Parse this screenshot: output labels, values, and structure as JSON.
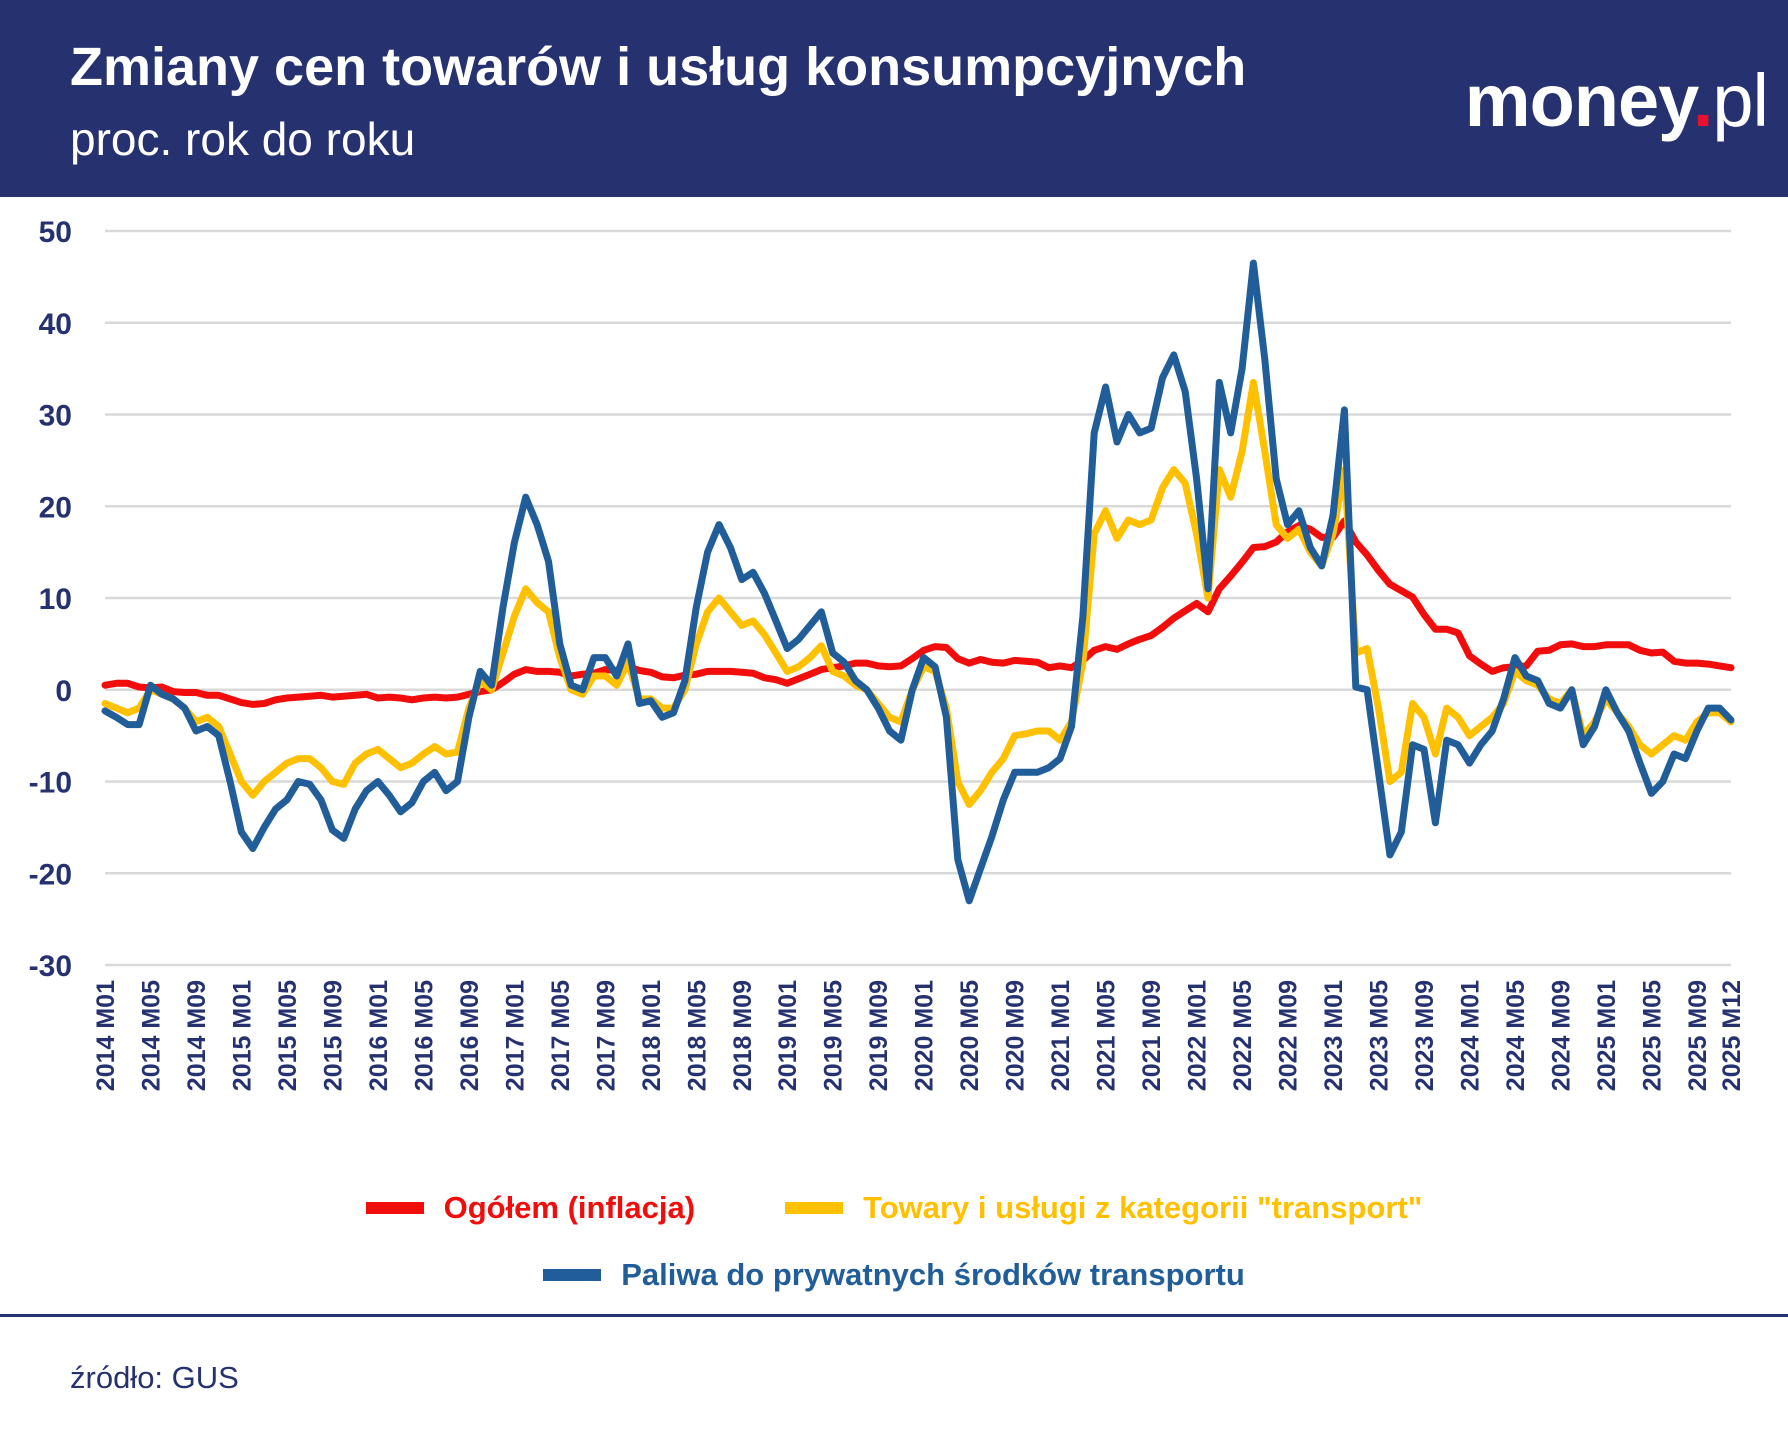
{
  "header": {
    "title": "Zmiany cen towarów i usług konsumpcyjnych",
    "subtitle": "proc. rok do roku",
    "logo": {
      "main": "money",
      "dot": ".",
      "suffix": "pl"
    }
  },
  "source": "źródło: GUS",
  "colors": {
    "header_bg": "#263270",
    "red": "#f20d0d",
    "yellow": "#ffc000",
    "blue": "#215e99",
    "axis_text": "#263270",
    "grid": "#d9d9d9"
  },
  "chart_data": {
    "type": "line",
    "ylim": [
      -30,
      50
    ],
    "yticks": [
      50,
      40,
      30,
      20,
      10,
      0,
      -10,
      -20,
      -30
    ],
    "grid": true,
    "legend_placement": "bottom",
    "x_start": "2014 M01",
    "x_end": "2025 M12",
    "xtick_labels": [
      "2014 M01",
      "2014 M05",
      "2014 M09",
      "2015 M01",
      "2015 M05",
      "2015 M09",
      "2016 M01",
      "2016 M05",
      "2016 M09",
      "2017 M01",
      "2017 M05",
      "2017 M09",
      "2018 M01",
      "2018 M05",
      "2018 M09",
      "2019 M01",
      "2019 M05",
      "2019 M09",
      "2020 M01",
      "2020 M05",
      "2020 M09",
      "2021 M01",
      "2021 M05",
      "2021 M09",
      "2022 M01",
      "2022 M05",
      "2022 M09",
      "2023 M01",
      "2023 M05",
      "2023 M09",
      "2024 M01",
      "2024 M05",
      "2024 M09",
      "2025 M01",
      "2025 M05",
      "2025 M09",
      "2025 M12"
    ],
    "series": [
      {
        "name": "Ogółem (inflacja)",
        "color": "#f20d0d",
        "values": [
          0.5,
          0.7,
          0.7,
          0.3,
          0.2,
          0.3,
          -0.2,
          -0.3,
          -0.3,
          -0.6,
          -0.6,
          -1.0,
          -1.4,
          -1.6,
          -1.5,
          -1.1,
          -0.9,
          -0.8,
          -0.7,
          -0.6,
          -0.8,
          -0.7,
          -0.6,
          -0.5,
          -0.9,
          -0.8,
          -0.9,
          -1.1,
          -0.9,
          -0.8,
          -0.9,
          -0.8,
          -0.5,
          -0.2,
          0.0,
          0.8,
          1.7,
          2.2,
          2.0,
          2.0,
          1.9,
          1.5,
          1.7,
          1.8,
          2.2,
          2.1,
          2.5,
          2.1,
          1.9,
          1.4,
          1.3,
          1.6,
          1.7,
          2.0,
          2.0,
          2.0,
          1.9,
          1.8,
          1.3,
          1.1,
          0.7,
          1.2,
          1.7,
          2.2,
          2.4,
          2.6,
          2.9,
          2.9,
          2.6,
          2.5,
          2.6,
          3.4,
          4.3,
          4.7,
          4.6,
          3.4,
          2.9,
          3.3,
          3.0,
          2.9,
          3.2,
          3.1,
          3.0,
          2.4,
          2.6,
          2.4,
          3.2,
          4.3,
          4.7,
          4.4,
          5.0,
          5.5,
          5.9,
          6.8,
          7.8,
          8.6,
          9.4,
          8.5,
          11.0,
          12.4,
          13.9,
          15.5,
          15.6,
          16.1,
          17.2,
          17.9,
          17.5,
          16.6,
          16.6,
          18.4,
          16.1,
          14.7,
          13.0,
          11.5,
          10.8,
          10.1,
          8.2,
          6.6,
          6.6,
          6.2,
          3.7,
          2.8,
          2.0,
          2.4,
          2.5,
          2.6,
          4.2,
          4.3,
          4.9,
          5.0,
          4.7,
          4.7,
          4.9,
          4.9,
          4.9,
          4.3,
          4.0,
          4.1,
          3.1,
          2.9,
          2.9,
          2.8,
          2.6,
          2.4
        ]
      },
      {
        "name": "Towary i usługi z kategorii \"transport\"",
        "color": "#ffc000",
        "values": [
          -1.5,
          -2,
          -2.5,
          -2,
          0,
          -0.5,
          -1,
          -2,
          -3.5,
          -3,
          -4,
          -7,
          -10,
          -11.5,
          -10,
          -9,
          -8,
          -7.5,
          -7.5,
          -8.5,
          -10,
          -10.3,
          -8,
          -7,
          -6.5,
          -7.5,
          -8.5,
          -8,
          -7,
          -6.2,
          -7,
          -6.8,
          -2,
          1,
          0,
          4,
          8,
          11,
          9.5,
          8.5,
          3.5,
          0,
          -0.5,
          1.5,
          1.5,
          0.5,
          3,
          -1,
          -1,
          -2,
          -2,
          0,
          5,
          8.5,
          10,
          8.5,
          7,
          7.5,
          6,
          4,
          2,
          2.5,
          3.5,
          4.8,
          2,
          1.5,
          0.5,
          0,
          -1.5,
          -3,
          -3.5,
          0,
          2.5,
          2,
          -2,
          -10,
          -12.5,
          -11,
          -9,
          -7.5,
          -5,
          -4.8,
          -4.5,
          -4.5,
          -5.5,
          -3.5,
          3,
          17,
          19.5,
          16.5,
          18.5,
          18,
          18.5,
          22,
          24,
          22.5,
          17,
          10,
          24,
          21,
          26,
          33.5,
          26,
          18,
          16.5,
          17.5,
          15,
          13.5,
          17,
          24,
          4,
          4.5,
          -2,
          -10,
          -9,
          -1.5,
          -3,
          -7,
          -2,
          -3,
          -5,
          -4,
          -3,
          -1.5,
          2,
          1,
          0.5,
          -1,
          -1.5,
          0,
          -5,
          -3.5,
          -1,
          -2.5,
          -4,
          -6,
          -7,
          -6,
          -5,
          -5.5,
          -3.5,
          -2.5,
          -2.5,
          -3.5
        ]
      },
      {
        "name": "Paliwa do prywatnych środków transportu",
        "color": "#215e99",
        "values": [
          -2.3,
          -3,
          -3.8,
          -3.8,
          0.5,
          -0.5,
          -1,
          -2,
          -4.5,
          -4,
          -5,
          -10,
          -15.5,
          -17.3,
          -15,
          -13,
          -12,
          -10,
          -10.3,
          -12,
          -15.3,
          -16.2,
          -13,
          -11,
          -10,
          -11.5,
          -13.3,
          -12.3,
          -10,
          -9,
          -11,
          -10,
          -3,
          2,
          0.5,
          9,
          16,
          21,
          18,
          14,
          5,
          0.5,
          0,
          3.5,
          3.5,
          1.5,
          5,
          -1.5,
          -1.2,
          -3,
          -2.5,
          1,
          9,
          15,
          18,
          15.5,
          12,
          12.8,
          10.5,
          7.5,
          4.5,
          5.5,
          7,
          8.5,
          4,
          3,
          1,
          0,
          -2,
          -4.5,
          -5.5,
          0,
          3.5,
          2.5,
          -3,
          -18.5,
          -23,
          -19.5,
          -16,
          -12,
          -9,
          -9,
          -9,
          -8.5,
          -7.5,
          -4,
          8,
          28,
          33,
          27,
          30,
          28,
          28.5,
          34,
          36.5,
          32.5,
          23,
          11,
          33.5,
          28,
          35,
          46.5,
          36,
          23,
          18,
          19.5,
          15.5,
          13.5,
          19,
          30.5,
          0.3,
          0,
          -9,
          -18,
          -15.5,
          -6,
          -6.5,
          -14.5,
          -5.5,
          -6,
          -8,
          -6,
          -4.5,
          -1,
          3.5,
          1.5,
          1,
          -1.5,
          -2,
          0,
          -6,
          -4,
          0,
          -2.5,
          -4.5,
          -8,
          -11.3,
          -10,
          -7,
          -7.5,
          -4.5,
          -2,
          -2,
          -3.3
        ]
      }
    ]
  }
}
